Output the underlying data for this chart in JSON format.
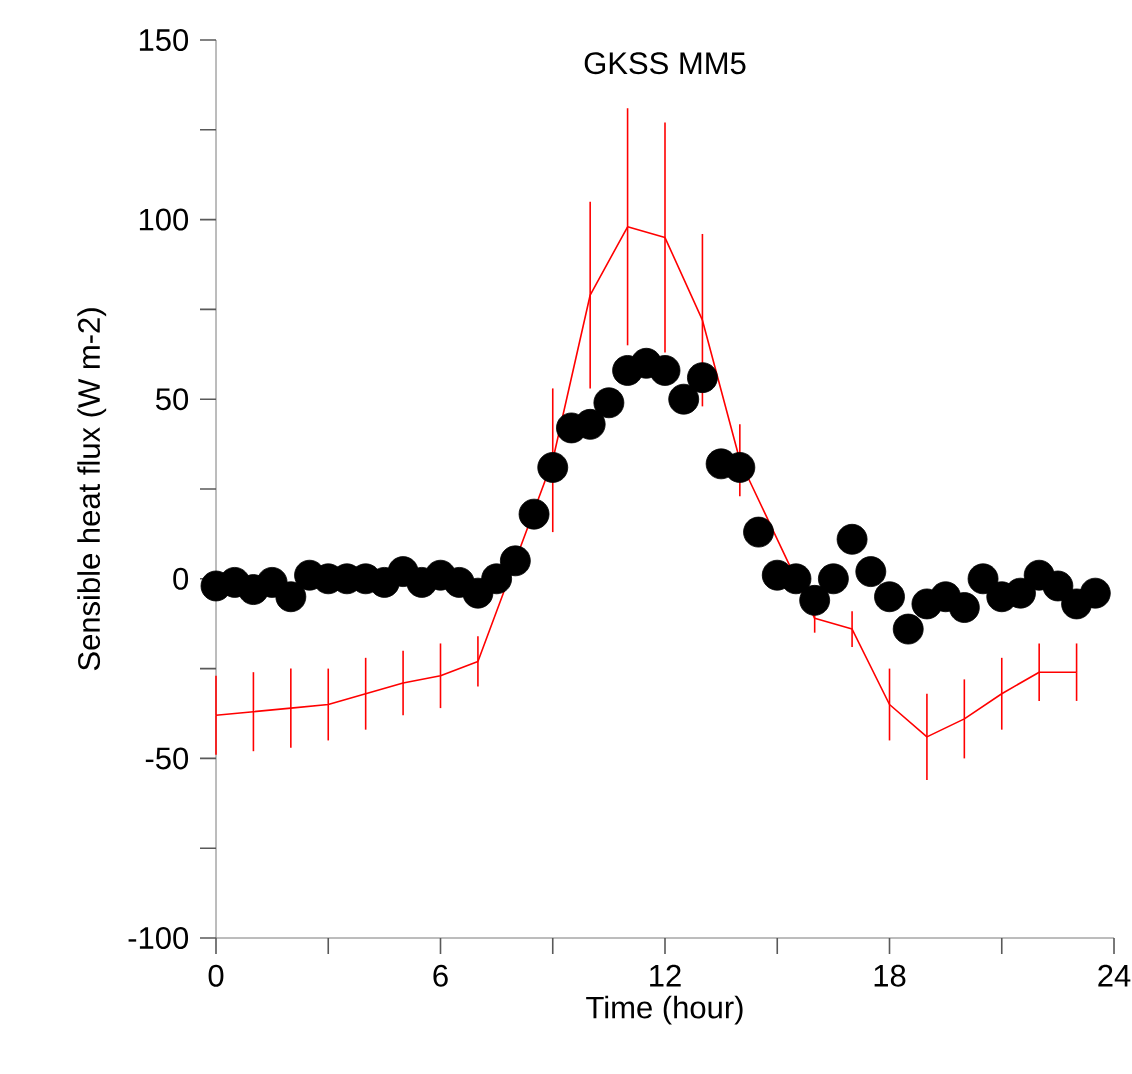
{
  "chart_data": {
    "type": "line",
    "title": "GKSS MM5",
    "xlabel": "Time (hour)",
    "ylabel": "Sensible heat flux (W m-2)",
    "xlim": [
      0,
      24
    ],
    "ylim": [
      -100,
      150
    ],
    "xticks": [
      0,
      {
        "value": 3,
        "label": null
      },
      6,
      {
        "value": 9,
        "label": null
      },
      12,
      {
        "value": 15,
        "label": null
      },
      18,
      {
        "value": 21,
        "label": null
      },
      24
    ],
    "yticks": [
      -100,
      {
        "value": -75,
        "label": null
      },
      -50,
      {
        "value": -25,
        "label": null
      },
      0,
      {
        "value": 25,
        "label": null
      },
      50,
      {
        "value": 75,
        "label": null
      },
      100,
      {
        "value": 125,
        "label": null
      },
      150
    ],
    "series": [
      {
        "color": "#ff0000",
        "marker": "none",
        "line_style": "solid",
        "x": [
          0,
          1,
          2,
          3,
          4,
          5,
          6,
          7,
          9,
          10,
          11,
          12,
          13,
          14,
          16,
          17,
          18,
          19,
          20,
          21,
          22,
          23
        ],
        "values": [
          -38,
          -37,
          -36,
          -35,
          -32,
          -29,
          -27,
          -23,
          33,
          79,
          98,
          95,
          72,
          33,
          -11,
          -14,
          -35,
          -44,
          -39,
          -32,
          -26,
          -26
        ],
        "errors": [
          11,
          11,
          11,
          10,
          10,
          9,
          9,
          7,
          20,
          26,
          33,
          32,
          24,
          10,
          4,
          5,
          10,
          12,
          11,
          10,
          8,
          8
        ]
      },
      {
        "type": "scatter",
        "color": "#000000",
        "marker": "circle",
        "x": [
          0,
          0.5,
          1,
          1.5,
          2,
          2.5,
          3,
          3.5,
          4,
          4.5,
          5,
          5.5,
          6,
          6.5,
          7,
          7.5,
          8,
          8.5,
          9,
          9.5,
          10,
          10.5,
          11,
          11.5,
          12,
          12.5,
          13,
          13.5,
          14,
          14.5,
          15,
          15.5,
          16,
          16.5,
          17,
          17.5,
          18,
          18.5,
          19,
          19.5,
          20,
          20.5,
          21,
          21.5,
          22,
          22.5,
          23,
          23.5
        ],
        "values": [
          -2,
          -1,
          -3,
          -1,
          -5,
          1,
          0,
          0,
          0,
          -1,
          2,
          -1,
          1,
          -1,
          -4,
          0,
          5,
          18,
          31,
          42,
          43,
          49,
          58,
          60,
          58,
          50,
          56,
          32,
          31,
          13,
          1,
          0,
          -6,
          0,
          11,
          2,
          -5,
          -14,
          -7,
          -5,
          -8,
          0,
          -5,
          -4,
          1,
          -2,
          -7,
          -4
        ]
      }
    ]
  }
}
